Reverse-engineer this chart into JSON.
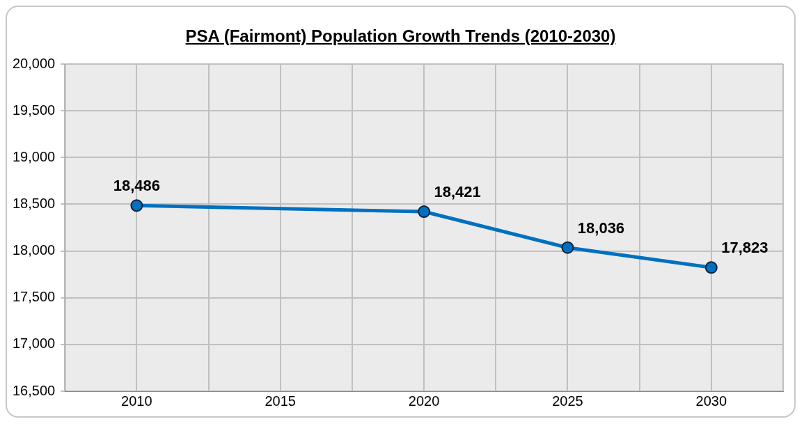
{
  "chart_data": {
    "type": "line",
    "title": "PSA (Fairmont) Population Growth Trends (2010-2030)",
    "x": [
      2010,
      2020,
      2025,
      2030
    ],
    "series": [
      {
        "color": "#0070c0",
        "values": [
          18486,
          18421,
          18036,
          17823
        ],
        "value_labels": [
          "18,486",
          "18,421",
          "18,036",
          "17,823"
        ]
      }
    ],
    "xlim": [
      2007.5,
      2032.5
    ],
    "xticks": [
      {
        "value": 2007.5,
        "label": null
      },
      2010,
      {
        "value": 2012.5,
        "label": null
      },
      2015,
      {
        "value": 2017.5,
        "label": null
      },
      2020,
      {
        "value": 2022.5,
        "label": null
      },
      2025,
      {
        "value": 2027.5,
        "label": null
      },
      2030,
      {
        "value": 2032.5,
        "label": null
      }
    ],
    "ylim": [
      16500,
      20000
    ],
    "yticks": [
      {
        "value": 16500,
        "label": "16,500"
      },
      {
        "value": 17000,
        "label": "17,000"
      },
      {
        "value": 17500,
        "label": "17,500"
      },
      {
        "value": 18000,
        "label": "18,000"
      },
      {
        "value": 18500,
        "label": "18,500"
      },
      {
        "value": 19000,
        "label": "19,000"
      },
      {
        "value": 19500,
        "label": "19,500"
      },
      {
        "value": 20000,
        "label": "20,000"
      }
    ],
    "grid": true,
    "marker": "circle",
    "line_style": "solid"
  }
}
